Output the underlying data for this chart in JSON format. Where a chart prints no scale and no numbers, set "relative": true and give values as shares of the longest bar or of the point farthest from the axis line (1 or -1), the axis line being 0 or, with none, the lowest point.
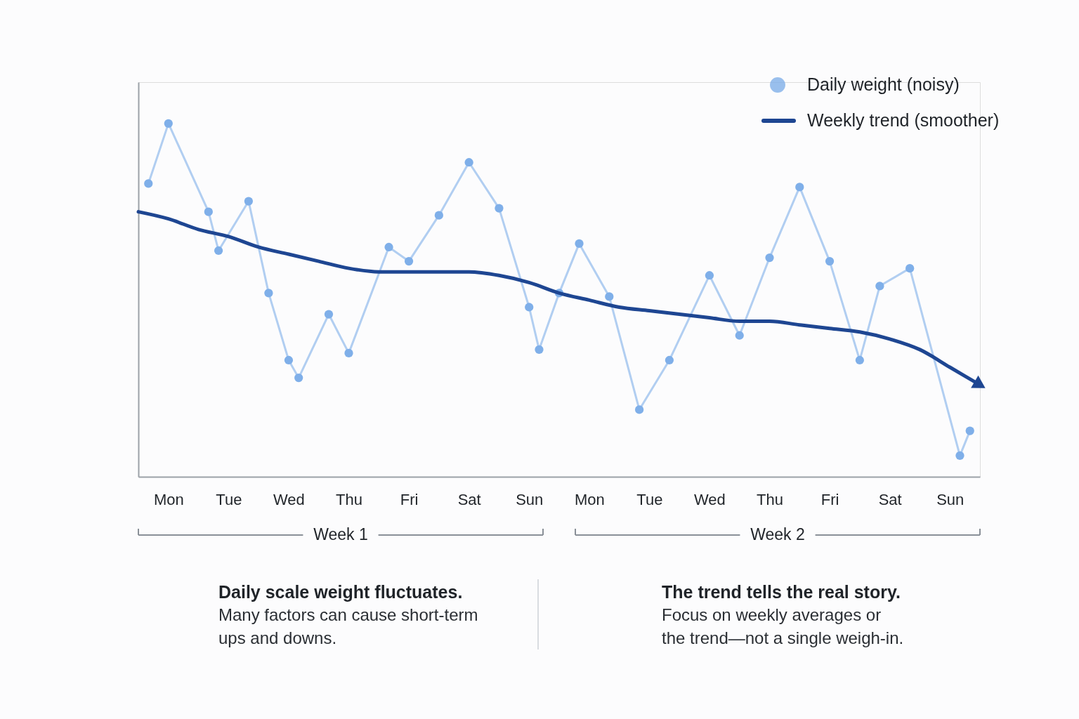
{
  "chart_data": {
    "type": "line",
    "relative": true,
    "categories": [
      null,
      null,
      null,
      "Mon",
      null,
      null,
      null,
      null,
      null,
      "Tue",
      null,
      null,
      null,
      null,
      null,
      "Wed",
      null,
      null,
      null,
      null,
      null,
      "Thu",
      null,
      null,
      null,
      null,
      null,
      "Fri",
      null,
      null,
      null,
      null,
      null,
      "Sat",
      null,
      null,
      null,
      null,
      null,
      "Sun",
      null,
      null,
      null,
      null,
      null,
      "Mon",
      null,
      null,
      null,
      null,
      null,
      "Tue",
      null,
      null,
      null,
      null,
      null,
      "Wed",
      null,
      null,
      null,
      null,
      null,
      "Thu",
      null,
      null,
      null,
      null,
      null,
      "Fri",
      null,
      null,
      null,
      null,
      null,
      "Sat",
      null,
      null,
      null,
      null,
      null,
      "Sun",
      null,
      null,
      null
    ],
    "series": [
      {
        "name": "Daily weight (noisy)",
        "color": "#7fafe9",
        "marker": "circle",
        "values": [
          null,
          0.83,
          null,
          1.0,
          null,
          null,
          null,
          0.75,
          0.64,
          null,
          null,
          0.78,
          null,
          0.52,
          null,
          0.33,
          0.28,
          null,
          null,
          0.46,
          null,
          0.35,
          null,
          null,
          null,
          0.65,
          null,
          0.61,
          null,
          null,
          0.74,
          null,
          null,
          0.89,
          null,
          null,
          0.76,
          null,
          null,
          0.48,
          0.36,
          null,
          0.52,
          null,
          0.66,
          null,
          null,
          0.51,
          null,
          null,
          0.19,
          null,
          null,
          0.33,
          null,
          null,
          null,
          0.57,
          null,
          null,
          0.4,
          null,
          null,
          0.62,
          null,
          null,
          0.82,
          null,
          null,
          0.61,
          null,
          null,
          0.33,
          null,
          0.54,
          null,
          null,
          0.59,
          null,
          null,
          null,
          null,
          0.06,
          0.13,
          null
        ]
      },
      {
        "name": "Weekly trend (smoother)",
        "color": "#1e4692",
        "values": [
          0.75,
          null,
          null,
          0.73,
          null,
          null,
          0.7,
          null,
          null,
          0.68,
          null,
          null,
          0.65,
          null,
          null,
          0.63,
          null,
          null,
          0.61,
          null,
          null,
          0.59,
          null,
          null,
          0.58,
          null,
          null,
          0.58,
          null,
          null,
          0.58,
          null,
          null,
          0.58,
          null,
          null,
          0.57,
          null,
          null,
          0.55,
          null,
          null,
          0.52,
          null,
          null,
          0.5,
          null,
          null,
          0.48,
          null,
          null,
          0.47,
          null,
          null,
          0.46,
          null,
          null,
          0.45,
          null,
          null,
          0.44,
          null,
          null,
          0.44,
          null,
          null,
          0.43,
          null,
          null,
          0.42,
          null,
          null,
          0.41,
          null,
          null,
          0.39,
          null,
          null,
          0.36,
          null,
          null,
          0.31,
          null,
          null,
          0.26
        ]
      }
    ],
    "legend": "top right",
    "annotations": [
      "Week 1",
      "Week 2",
      "Daily scale weight fluctuates.",
      "Many factors can cause short-term\nups and downs.",
      "The trend tells the real story.",
      "Focus on weekly averages or\nthe trend—not a single weigh-in."
    ]
  }
}
